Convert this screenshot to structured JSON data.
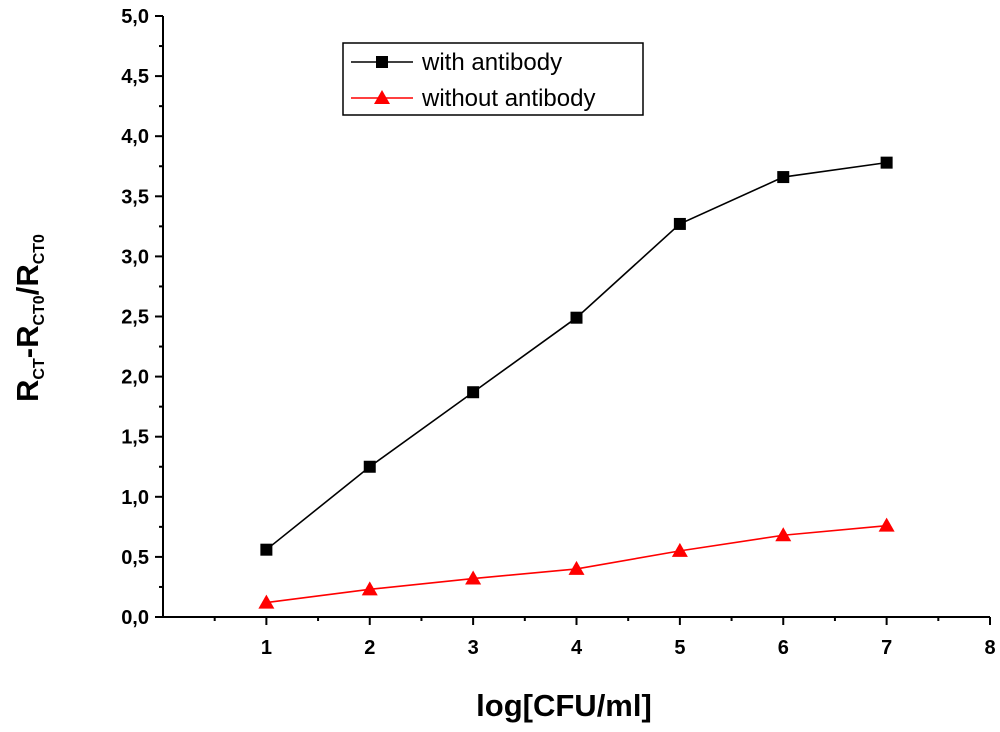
{
  "chart_data": {
    "type": "line",
    "xlabel": "log[CFU/ml]",
    "ylabel": {
      "parts": [
        {
          "text": "R",
          "sub": false
        },
        {
          "text": "CT",
          "sub": true
        },
        {
          "text": "-R",
          "sub": false
        },
        {
          "text": "CT0",
          "sub": true
        },
        {
          "text": "/R",
          "sub": false
        },
        {
          "text": "CT0",
          "sub": true
        }
      ]
    },
    "xlim": [
      0,
      8
    ],
    "ylim": [
      0,
      5
    ],
    "x_ticks": [
      "1",
      "2",
      "3",
      "4",
      "5",
      "6",
      "7",
      "8"
    ],
    "x_tick_values": [
      1,
      2,
      3,
      4,
      5,
      6,
      7,
      8
    ],
    "y_ticks": [
      "0,0",
      "0,5",
      "1,0",
      "1,5",
      "2,0",
      "2,5",
      "3,0",
      "3,5",
      "4,0",
      "4,5",
      "5,0"
    ],
    "y_tick_values": [
      0,
      0.5,
      1,
      1.5,
      2,
      2.5,
      3,
      3.5,
      4,
      4.5,
      5
    ],
    "grid": false,
    "legend": "top-center",
    "series": [
      {
        "name": "with antibody",
        "color": "#000000",
        "marker": "square",
        "x": [
          1,
          2,
          3,
          4,
          5,
          6,
          7
        ],
        "values": [
          0.56,
          1.25,
          1.87,
          2.49,
          3.27,
          3.66,
          3.78
        ]
      },
      {
        "name": "without antibody",
        "color": "#ff0000",
        "marker": "triangle",
        "x": [
          1,
          2,
          3,
          4,
          5,
          6,
          7
        ],
        "values": [
          0.12,
          0.23,
          0.32,
          0.4,
          0.55,
          0.68,
          0.76
        ]
      }
    ]
  }
}
